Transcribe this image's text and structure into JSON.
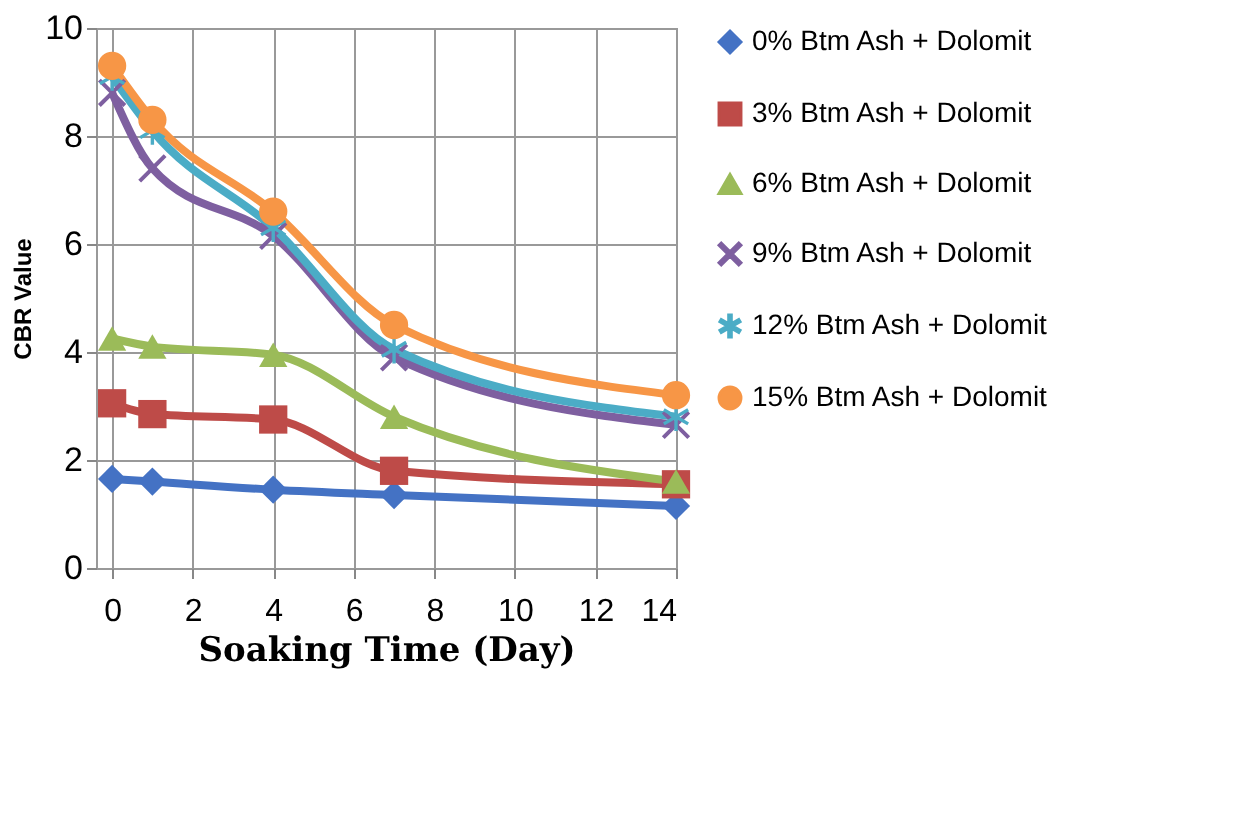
{
  "chart_data": {
    "type": "line",
    "xlabel": "Soaking Time (Day)",
    "ylabel": "CBR Value",
    "x": [
      0,
      1,
      4,
      7,
      14
    ],
    "xlim": [
      -0.4,
      14
    ],
    "xticks": [
      0,
      2,
      4,
      6,
      8,
      10,
      12,
      14
    ],
    "ylim": [
      0,
      10
    ],
    "yticks": [
      0,
      2,
      4,
      6,
      8,
      10
    ],
    "grid": true,
    "legend": "right",
    "series": [
      {
        "name": "0% Btm Ash + Dolomit",
        "color": "#4472c4",
        "marker": "diamond",
        "values": [
          1.65,
          1.6,
          1.45,
          1.35,
          1.15
        ]
      },
      {
        "name": "3% Btm Ash + Dolomit",
        "color": "#be4b48",
        "marker": "square",
        "values": [
          3.05,
          2.85,
          2.75,
          1.8,
          1.55
        ]
      },
      {
        "name": "6% Btm Ash + Dolomit",
        "color": "#9bbb59",
        "marker": "triangle",
        "values": [
          4.25,
          4.1,
          3.95,
          2.8,
          1.6
        ]
      },
      {
        "name": "9% Btm Ash + Dolomit",
        "color": "#7e5fa0",
        "marker": "cross",
        "values": [
          8.8,
          7.4,
          6.15,
          3.9,
          2.65
        ]
      },
      {
        "name": "12% Btm Ash + Dolomit",
        "color": "#4bacc6",
        "marker": "star",
        "values": [
          9.1,
          8.1,
          6.3,
          4.05,
          2.8
        ]
      },
      {
        "name": "15% Btm Ash + Dolomit",
        "color": "#f79646",
        "marker": "circle",
        "values": [
          9.3,
          8.3,
          6.6,
          4.5,
          3.2
        ]
      }
    ]
  }
}
